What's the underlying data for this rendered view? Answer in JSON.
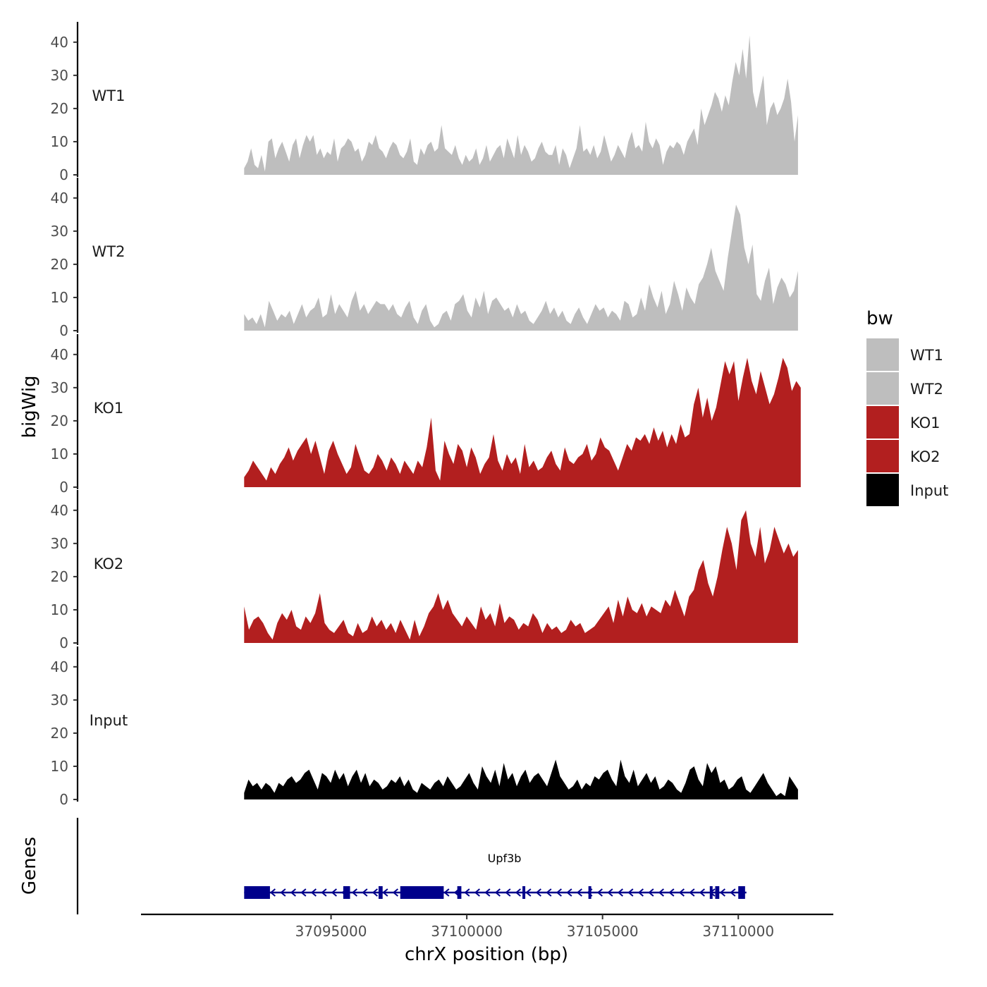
{
  "chart_data": {
    "type": "area",
    "xlabel": "chrX position (bp)",
    "ylabel": "bigWig",
    "genes_label": "Genes",
    "xlim": [
      37088000,
      37113500
    ],
    "x_ticks": [
      37095000,
      37100000,
      37105000,
      37110000
    ],
    "x_tick_labels": [
      "37095000",
      "37100000",
      "37105000",
      "37110000"
    ],
    "ylim": [
      0,
      44
    ],
    "y_ticks": [
      0,
      10,
      20,
      30,
      40
    ],
    "y_tick_labels": [
      "0",
      "10",
      "20",
      "30",
      "40"
    ],
    "series": [
      {
        "name": "WT1",
        "color": "#bebebe",
        "x_start": 37091800,
        "x_end": 37112200,
        "values": [
          2,
          4,
          8,
          3,
          2,
          6,
          1,
          10,
          11,
          5,
          8,
          10,
          7,
          4,
          9,
          11,
          5,
          9,
          12,
          10,
          12,
          6,
          8,
          5,
          7,
          6,
          11,
          4,
          8,
          9,
          11,
          10,
          7,
          8,
          4,
          6,
          10,
          9,
          12,
          8,
          7,
          5,
          8,
          10,
          9,
          6,
          5,
          7,
          11,
          4,
          3,
          8,
          6,
          9,
          10,
          7,
          8,
          15,
          8,
          7,
          6,
          9,
          5,
          3,
          6,
          4,
          5,
          8,
          3,
          5,
          9,
          4,
          6,
          8,
          9,
          5,
          11,
          8,
          5,
          12,
          6,
          9,
          7,
          4,
          5,
          8,
          10,
          7,
          6,
          6,
          9,
          3,
          8,
          6,
          2,
          5,
          8,
          15,
          7,
          8,
          6,
          9,
          5,
          7,
          12,
          8,
          4,
          6,
          9,
          7,
          5,
          10,
          13,
          8,
          9,
          7,
          16,
          10,
          8,
          11,
          9,
          3,
          7,
          9,
          8,
          10,
          9,
          6,
          10,
          12,
          14,
          9,
          20,
          15,
          18,
          21,
          25,
          23,
          19,
          24,
          21,
          28,
          34,
          30,
          38,
          29,
          42,
          25,
          20,
          25,
          30,
          15,
          20,
          22,
          18,
          20,
          23,
          29,
          22,
          10,
          18
        ],
        "legend_label": "WT1"
      },
      {
        "name": "WT2",
        "color": "#bebebe",
        "x_start": 37091800,
        "x_end": 37112200,
        "values": [
          5,
          3,
          4,
          2,
          5,
          1,
          9,
          6,
          3,
          5,
          4,
          6,
          2,
          5,
          8,
          4,
          6,
          7,
          10,
          4,
          5,
          11,
          5,
          8,
          6,
          4,
          9,
          12,
          6,
          8,
          5,
          7,
          9,
          8,
          8,
          6,
          8,
          5,
          4,
          7,
          9,
          4,
          2,
          6,
          8,
          3,
          1,
          2,
          5,
          6,
          3,
          8,
          9,
          11,
          6,
          4,
          10,
          7,
          12,
          5,
          9,
          10,
          8,
          6,
          7,
          4,
          8,
          5,
          6,
          3,
          2,
          4,
          6,
          9,
          5,
          7,
          4,
          6,
          3,
          2,
          5,
          7,
          4,
          2,
          5,
          8,
          6,
          7,
          4,
          6,
          5,
          3,
          9,
          8,
          4,
          5,
          10,
          6,
          14,
          10,
          7,
          12,
          5,
          8,
          15,
          11,
          6,
          13,
          10,
          8,
          14,
          16,
          20,
          25,
          18,
          15,
          12,
          22,
          30,
          38,
          35,
          25,
          20,
          26,
          11,
          9,
          15,
          19,
          8,
          13,
          16,
          14,
          10,
          12,
          18
        ],
        "legend_label": "WT2"
      },
      {
        "name": "KO1",
        "color": "#b21f1f",
        "x_start": 37091800,
        "x_end": 37112300,
        "values": [
          3,
          5,
          8,
          6,
          4,
          2,
          6,
          4,
          7,
          9,
          12,
          8,
          11,
          13,
          15,
          10,
          14,
          9,
          4,
          11,
          14,
          10,
          7,
          4,
          6,
          13,
          9,
          5,
          4,
          6,
          10,
          8,
          5,
          9,
          7,
          4,
          8,
          6,
          4,
          8,
          6,
          12,
          21,
          5,
          2,
          14,
          10,
          7,
          13,
          11,
          6,
          12,
          9,
          4,
          7,
          9,
          16,
          8,
          5,
          10,
          7,
          9,
          4,
          13,
          6,
          8,
          5,
          6,
          9,
          11,
          7,
          5,
          12,
          8,
          7,
          9,
          10,
          13,
          8,
          10,
          15,
          12,
          11,
          8,
          5,
          9,
          13,
          11,
          15,
          14,
          16,
          13,
          18,
          14,
          17,
          12,
          16,
          13,
          19,
          15,
          16,
          25,
          30,
          21,
          27,
          20,
          24,
          31,
          38,
          34,
          38,
          26,
          33,
          39,
          32,
          28,
          35,
          30,
          25,
          28,
          33,
          39,
          36,
          29,
          32,
          30
        ],
        "legend_label": "KO1"
      },
      {
        "name": "KO2",
        "color": "#b21f1f",
        "x_start": 37091800,
        "x_end": 37112200,
        "values": [
          11,
          4,
          7,
          8,
          6,
          3,
          1,
          6,
          9,
          7,
          10,
          5,
          4,
          8,
          6,
          9,
          15,
          6,
          4,
          3,
          5,
          7,
          3,
          2,
          6,
          3,
          4,
          8,
          5,
          7,
          4,
          6,
          3,
          7,
          4,
          1,
          7,
          2,
          5,
          9,
          11,
          15,
          10,
          13,
          9,
          7,
          5,
          8,
          6,
          4,
          11,
          7,
          9,
          5,
          12,
          6,
          8,
          7,
          4,
          6,
          5,
          9,
          7,
          3,
          6,
          4,
          5,
          3,
          4,
          7,
          5,
          6,
          3,
          4,
          5,
          7,
          9,
          11,
          6,
          13,
          8,
          14,
          10,
          9,
          12,
          8,
          11,
          10,
          9,
          13,
          11,
          16,
          12,
          8,
          14,
          16,
          22,
          25,
          18,
          14,
          20,
          28,
          35,
          30,
          22,
          37,
          40,
          30,
          26,
          35,
          24,
          28,
          35,
          31,
          27,
          30,
          26,
          28
        ],
        "legend_label": "KO2"
      },
      {
        "name": "Input",
        "color": "#000000",
        "x_start": 37091800,
        "x_end": 37112200,
        "values": [
          2,
          6,
          4,
          5,
          3,
          5,
          4,
          2,
          5,
          4,
          6,
          7,
          5,
          6,
          8,
          9,
          6,
          3,
          8,
          7,
          5,
          9,
          6,
          8,
          4,
          7,
          9,
          5,
          8,
          4,
          6,
          5,
          3,
          4,
          6,
          5,
          7,
          4,
          6,
          3,
          2,
          5,
          4,
          3,
          5,
          6,
          4,
          7,
          5,
          3,
          4,
          6,
          8,
          5,
          3,
          10,
          7,
          5,
          9,
          4,
          11,
          6,
          8,
          4,
          7,
          9,
          5,
          7,
          8,
          6,
          4,
          8,
          12,
          7,
          5,
          3,
          4,
          6,
          3,
          5,
          4,
          7,
          6,
          8,
          9,
          6,
          4,
          12,
          7,
          5,
          9,
          4,
          6,
          8,
          5,
          7,
          3,
          4,
          6,
          5,
          3,
          2,
          5,
          9,
          10,
          6,
          4,
          11,
          8,
          10,
          5,
          6,
          3,
          4,
          6,
          7,
          3,
          2,
          4,
          6,
          8,
          5,
          3,
          1,
          2,
          1,
          7,
          5,
          3
        ],
        "legend_label": "Input"
      }
    ],
    "legend": {
      "title": "bw",
      "position": "right",
      "entries": [
        {
          "label": "WT1",
          "color": "#bebebe"
        },
        {
          "label": "WT2",
          "color": "#bebebe"
        },
        {
          "label": "KO1",
          "color": "#b21f1f"
        },
        {
          "label": "KO2",
          "color": "#b21f1f"
        },
        {
          "label": "Input",
          "color": "#000000"
        }
      ]
    },
    "gene": {
      "name": "Upf3b",
      "strand": "-",
      "color": "#00008b",
      "start": 37091800,
      "end": 37110300,
      "exons": [
        [
          37091800,
          37092750,
          "thick"
        ],
        [
          37095450,
          37095700,
          "thick"
        ],
        [
          37096750,
          37096900,
          "thick"
        ],
        [
          37097550,
          37099150,
          "thick"
        ],
        [
          37099650,
          37099800,
          "thick"
        ],
        [
          37102050,
          37102120,
          "thick"
        ],
        [
          37104480,
          37104560,
          "thick"
        ],
        [
          37108950,
          37109050,
          "thick"
        ],
        [
          37109150,
          37109300,
          "thick"
        ],
        [
          37110000,
          37110250,
          "thick"
        ]
      ]
    }
  }
}
